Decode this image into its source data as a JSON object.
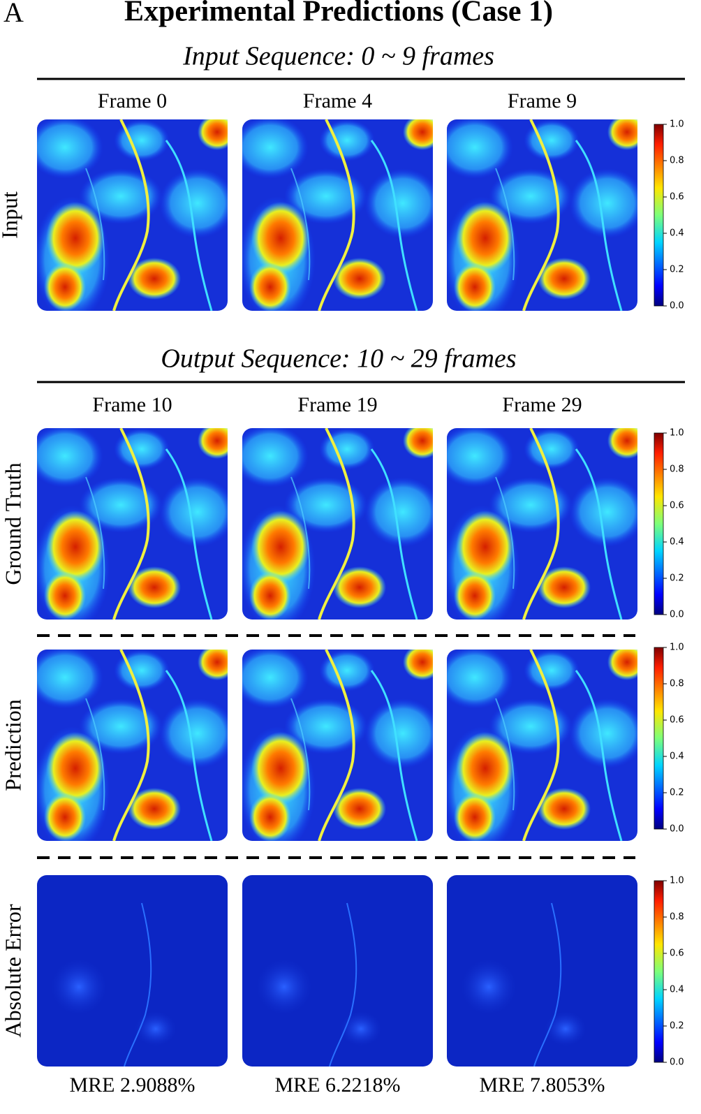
{
  "panel_label": "A",
  "title": "Experimental Predictions (Case 1)",
  "input": {
    "header": "Input Sequence: 0 ~ 9 frames",
    "frames": [
      "Frame 0",
      "Frame 4",
      "Frame 9"
    ],
    "row_label": "Input"
  },
  "output": {
    "header": "Output Sequence: 10 ~ 29 frames",
    "frames": [
      "Frame 10",
      "Frame 19",
      "Frame 29"
    ],
    "row_labels": [
      "Ground Truth",
      "Prediction",
      "Absolute Error"
    ],
    "mre": [
      "MRE 2.9088%",
      "MRE 6.2218%",
      "MRE 7.8053%"
    ]
  },
  "colorbar": {
    "range": [
      0,
      1
    ],
    "ticks": [
      {
        "value": 0,
        "label": "0.0"
      },
      {
        "value": 0.2,
        "label": "0.2"
      },
      {
        "value": 0.4,
        "label": "0.4"
      },
      {
        "value": 0.6,
        "label": "0.6"
      },
      {
        "value": 0.8,
        "label": "0.8"
      },
      {
        "value": 1,
        "label": "1.0"
      }
    ]
  }
}
